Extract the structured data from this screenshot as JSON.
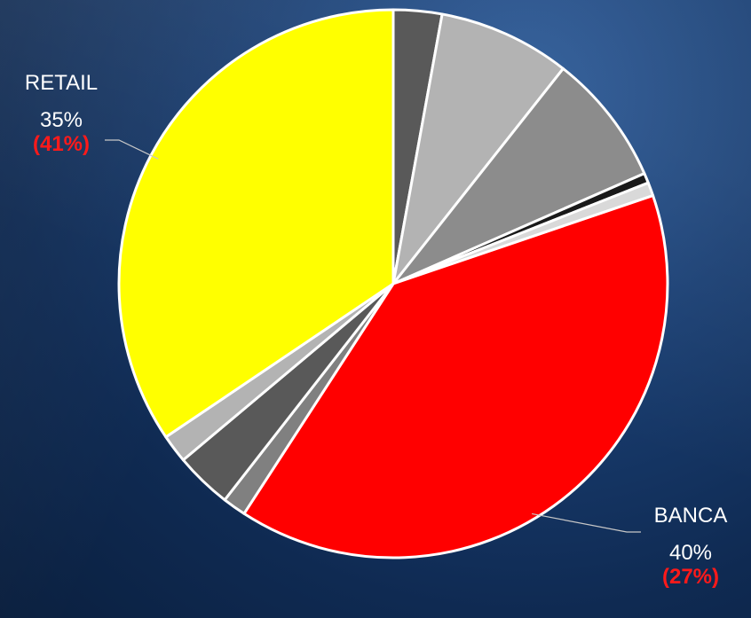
{
  "chart_data": {
    "type": "pie",
    "title": "",
    "start_angle_deg": 0,
    "direction": "clockwise",
    "slices": [
      {
        "label": "",
        "value": 2.9,
        "color": "#595959"
      },
      {
        "label": "",
        "value": 7.9,
        "color": "#b3b3b3"
      },
      {
        "label": "",
        "value": 7.9,
        "color": "#8c8c8c"
      },
      {
        "label": "",
        "value": 0.6,
        "color": "#1a1a1a"
      },
      {
        "label": "",
        "value": 0.8,
        "color": "#d9d9d9"
      },
      {
        "label": "BANCA",
        "value": 40,
        "previous": "(27%)",
        "display": "40%",
        "color": "#ff0000"
      },
      {
        "label": "",
        "value": 1.4,
        "color": "#808080"
      },
      {
        "label": "",
        "value": 3.4,
        "color": "#595959"
      },
      {
        "label": "",
        "value": 1.7,
        "color": "#b3b3b3"
      },
      {
        "label": "RETAIL",
        "value": 35,
        "previous": "(41%)",
        "display": "35%",
        "color": "#ffff00"
      }
    ]
  }
}
